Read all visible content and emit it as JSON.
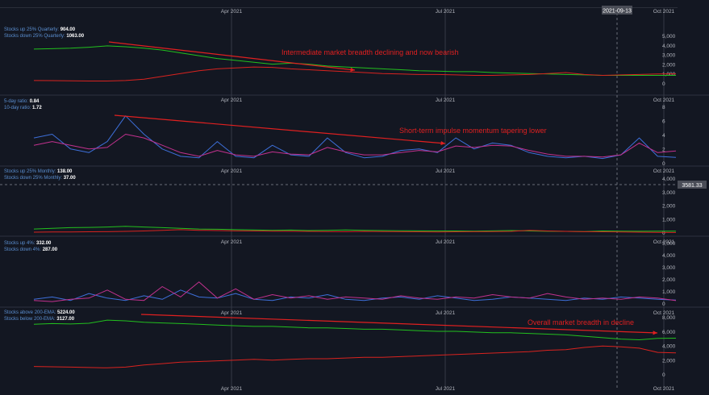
{
  "colors": {
    "background": "#131722",
    "grid": "#2a2e39",
    "up_series": "#22c01e",
    "down_series": "#d9231f",
    "ratio5": "#3d6fd9",
    "ratio10": "#c2318e",
    "annotation": "#e02020",
    "axis_text": "#b2b5be"
  },
  "x_axis": {
    "months": [
      "Apr 2021",
      "Jul 2021",
      "Oct 2021"
    ]
  },
  "crosshair": {
    "date": "2021-09-13",
    "price": "3581.33"
  },
  "panes": [
    {
      "id": "quarterly",
      "legend": [
        {
          "label": "Stocks up 25% Quarterly:",
          "value": "904.00"
        },
        {
          "label": "Stocks down 25% Quarterly:",
          "value": "1063.00"
        }
      ],
      "y_ticks": [
        "5,000",
        "4,000",
        "3,000",
        "2,000",
        "1,000",
        "0"
      ],
      "annotation": "Intermediate market breadth declining and now bearish"
    },
    {
      "id": "ratio",
      "legend": [
        {
          "label": "5-day ratio:",
          "value": "0.84"
        },
        {
          "label": "10-day ratio:",
          "value": "1.72"
        }
      ],
      "y_ticks": [
        "8",
        "6",
        "4",
        "2",
        "0"
      ],
      "annotation": "Short-term impulse momentum tapering lower"
    },
    {
      "id": "monthly",
      "legend": [
        {
          "label": "Stocks up 25% Monthly:",
          "value": "138.00"
        },
        {
          "label": "Stocks down 25% Monthly:",
          "value": "37.00"
        }
      ],
      "y_ticks": [
        "4,000",
        "3,000",
        "2,000",
        "1,000",
        "0"
      ],
      "annotation": ""
    },
    {
      "id": "daily4",
      "legend": [
        {
          "label": "Stocks up 4%:",
          "value": "332.00"
        },
        {
          "label": "Stocks down 4%:",
          "value": "287.00"
        }
      ],
      "y_ticks": [
        "5,000",
        "4,000",
        "3,000",
        "2,000",
        "1,000",
        "0"
      ],
      "annotation": ""
    },
    {
      "id": "ema200",
      "legend": [
        {
          "label": "Stocks above 200-EMA:",
          "value": "5224.00"
        },
        {
          "label": "Stocks below 200-EMA:",
          "value": "3127.00"
        }
      ],
      "y_ticks": [
        "8,000",
        "6,000",
        "4,000",
        "2,000",
        "0"
      ],
      "annotation": "Overall market breadth in decline"
    }
  ],
  "chart_data": [
    {
      "type": "line",
      "x_start": "2021-01-20",
      "x_end": "2021-10-20",
      "ylim": [
        0,
        5500
      ],
      "series": [
        {
          "name": "Stocks up 25% Quarterly",
          "color": "#22c01e",
          "values": [
            3700,
            3750,
            3800,
            3900,
            4050,
            3950,
            3800,
            3600,
            3300,
            3000,
            2700,
            2500,
            2300,
            2100,
            2200,
            2100,
            1900,
            1800,
            1700,
            1600,
            1500,
            1400,
            1350,
            1300,
            1300,
            1200,
            1150,
            1100,
            1050,
            1000,
            950,
            900,
            900,
            900,
            900,
            904
          ]
        },
        {
          "name": "Stocks down 25% Quarterly",
          "color": "#d9231f",
          "values": [
            350,
            340,
            320,
            300,
            300,
            350,
            500,
            800,
            1100,
            1400,
            1600,
            1700,
            1800,
            1750,
            1600,
            1500,
            1400,
            1300,
            1200,
            1100,
            1050,
            1000,
            1000,
            950,
            900,
            900,
            950,
            1000,
            1100,
            1200,
            1000,
            900,
            950,
            1000,
            1050,
            1063
          ]
        }
      ]
    },
    {
      "type": "line",
      "x_start": "2021-01-20",
      "x_end": "2021-10-20",
      "ylim": [
        0,
        8
      ],
      "series": [
        {
          "name": "5-day ratio",
          "color": "#3d6fd9",
          "values": [
            3.5,
            4,
            2,
            1.5,
            3,
            6.5,
            4,
            2,
            1,
            0.8,
            3,
            1,
            0.8,
            2.5,
            1.2,
            1,
            3.5,
            1.5,
            0.8,
            1,
            1.8,
            2,
            1.5,
            3.5,
            2,
            2.8,
            2.5,
            1.5,
            1,
            0.8,
            1,
            0.7,
            1.2,
            3.5,
            1,
            0.84
          ]
        },
        {
          "name": "10-day ratio",
          "color": "#c2318e",
          "values": [
            2.5,
            3,
            2.5,
            2,
            2.2,
            4,
            3.5,
            2.5,
            1.5,
            1,
            1.8,
            1.2,
            1,
            1.6,
            1.3,
            1.2,
            2.2,
            1.6,
            1.2,
            1.2,
            1.5,
            1.8,
            1.6,
            2.4,
            2.2,
            2.5,
            2.4,
            1.8,
            1.3,
            1,
            1,
            0.9,
            1.2,
            2.8,
            1.5,
            1.72
          ]
        }
      ]
    },
    {
      "type": "line",
      "x_start": "2021-01-20",
      "x_end": "2021-10-20",
      "ylim": [
        0,
        4500
      ],
      "series": [
        {
          "name": "Stocks up 25% Monthly",
          "color": "#22c01e",
          "values": [
            300,
            350,
            400,
            420,
            450,
            500,
            450,
            400,
            350,
            300,
            280,
            250,
            230,
            200,
            220,
            180,
            200,
            230,
            200,
            180,
            170,
            160,
            150,
            150,
            140,
            160,
            180,
            150,
            130,
            120,
            110,
            150,
            140,
            130,
            140,
            138
          ]
        },
        {
          "name": "Stocks down 25% Monthly",
          "color": "#d9231f",
          "values": [
            60,
            70,
            80,
            90,
            100,
            120,
            150,
            200,
            250,
            200,
            180,
            160,
            150,
            140,
            130,
            120,
            110,
            100,
            120,
            110,
            100,
            90,
            80,
            90,
            100,
            110,
            120,
            200,
            150,
            120,
            100,
            90,
            80,
            60,
            50,
            37
          ]
        }
      ]
    },
    {
      "type": "line",
      "x_start": "2021-01-20",
      "x_end": "2021-10-20",
      "ylim": [
        0,
        5500
      ],
      "series": [
        {
          "name": "Stocks up 4%",
          "color": "#3d6fd9",
          "values": [
            400,
            600,
            300,
            900,
            500,
            300,
            700,
            400,
            1200,
            600,
            500,
            900,
            400,
            300,
            600,
            500,
            800,
            400,
            300,
            500,
            600,
            400,
            700,
            500,
            300,
            400,
            600,
            500,
            400,
            300,
            500,
            400,
            600,
            500,
            400,
            332
          ]
        },
        {
          "name": "Stocks down 4%",
          "color": "#c2318e",
          "values": [
            300,
            200,
            400,
            500,
            1200,
            400,
            300,
            1500,
            600,
            1900,
            500,
            1300,
            400,
            800,
            500,
            700,
            400,
            600,
            500,
            400,
            700,
            500,
            400,
            600,
            500,
            800,
            600,
            500,
            900,
            600,
            400,
            500,
            400,
            600,
            500,
            287
          ]
        }
      ]
    },
    {
      "type": "line",
      "x_start": "2021-01-20",
      "x_end": "2021-10-20",
      "ylim": [
        0,
        8500
      ],
      "series": [
        {
          "name": "Stocks above 200-EMA",
          "color": "#22c01e",
          "values": [
            7200,
            7300,
            7250,
            7350,
            7800,
            7700,
            7500,
            7400,
            7300,
            7200,
            7100,
            7000,
            6900,
            6900,
            6800,
            6700,
            6700,
            6600,
            6500,
            6500,
            6400,
            6300,
            6200,
            6200,
            6100,
            6000,
            6000,
            5900,
            5800,
            5700,
            5500,
            5300,
            5100,
            5000,
            5200,
            5224
          ]
        },
        {
          "name": "Stocks below 200-EMA",
          "color": "#d9231f",
          "values": [
            1200,
            1150,
            1100,
            1050,
            1000,
            1100,
            1400,
            1600,
            1800,
            1900,
            2000,
            2100,
            2200,
            2100,
            2200,
            2300,
            2300,
            2400,
            2500,
            2500,
            2600,
            2700,
            2800,
            2900,
            3000,
            3100,
            3200,
            3300,
            3500,
            3600,
            3900,
            4100,
            4000,
            3800,
            3200,
            3127
          ]
        }
      ]
    }
  ]
}
